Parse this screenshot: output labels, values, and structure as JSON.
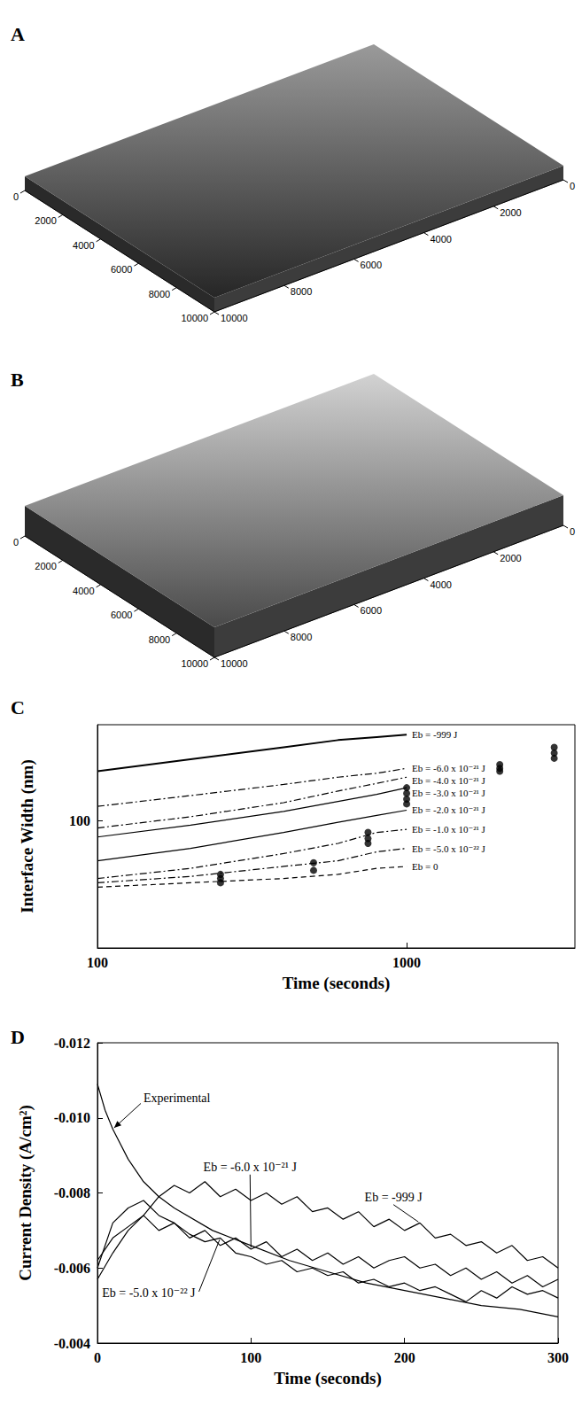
{
  "chart_data": [
    {
      "type": "surface3d",
      "title": "A",
      "xlim": [
        0,
        10000
      ],
      "ylim": [
        0,
        10000
      ],
      "xticks": [
        0,
        2000,
        4000,
        6000,
        8000,
        10000
      ],
      "yticks": [
        0,
        2000,
        4000,
        6000,
        8000,
        10000
      ]
    },
    {
      "type": "surface3d",
      "title": "B",
      "xlim": [
        0,
        10000
      ],
      "ylim": [
        0,
        10000
      ],
      "xticks": [
        0,
        2000,
        4000,
        6000,
        8000,
        10000
      ],
      "yticks": [
        0,
        2000,
        4000,
        6000,
        8000,
        10000
      ]
    },
    {
      "type": "line",
      "title": "C",
      "x_label": "Time (seconds)",
      "y_label": "Interface Width (nm)",
      "log": true,
      "grid": false,
      "xlim": [
        100,
        3500
      ],
      "ylim": [
        40,
        200
      ],
      "xticks": [
        100,
        1000
      ],
      "yticks": [
        100
      ],
      "series": [
        {
          "name": "Eb = -999 J",
          "color": "#000000",
          "line_style": "solid",
          "x": [
            100,
            200,
            400,
            600,
            800,
            1000
          ],
          "values": [
            143,
            156,
            170,
            179,
            183,
            186
          ]
        },
        {
          "name": "Eb = -6.0 x 10⁻²¹ J",
          "color": "#000000",
          "line_style": "dashdot",
          "x": [
            100,
            200,
            400,
            600,
            800,
            1000
          ],
          "values": [
            111,
            120,
            130,
            137,
            141,
            146
          ]
        },
        {
          "name": "Eb = -4.0 x 10⁻²¹ J",
          "color": "#000000",
          "line_style": "dashdot",
          "x": [
            100,
            200,
            400,
            600,
            800,
            1000
          ],
          "values": [
            95,
            103,
            114,
            124,
            131,
            137
          ]
        },
        {
          "name": "Eb = -3.0 x 10⁻²¹ J",
          "color": "#000000",
          "line_style": "solid",
          "x": [
            100,
            200,
            400,
            600,
            800,
            1000
          ],
          "values": [
            89,
            97,
            107,
            115,
            121,
            127
          ]
        },
        {
          "name": "Eb = -2.0 x 10⁻²¹ J",
          "color": "#000000",
          "line_style": "solid",
          "x": [
            100,
            200,
            400,
            600,
            800,
            1000
          ],
          "values": [
            75,
            82,
            92,
            99,
            104,
            108
          ]
        },
        {
          "name": "Eb = -1.0 x 10⁻²¹ J",
          "color": "#000000",
          "line_style": "dashdot",
          "x": [
            100,
            200,
            400,
            600,
            800,
            1000
          ],
          "values": [
            66,
            71,
            79,
            85,
            92,
            94
          ]
        },
        {
          "name": "Eb = -5.0 x 10⁻²² J",
          "color": "#000000",
          "line_style": "dashdot",
          "x": [
            100,
            200,
            400,
            600,
            800,
            1000
          ],
          "values": [
            64,
            67,
            72,
            75,
            80,
            82
          ]
        },
        {
          "name": "Eb = 0",
          "color": "#000000",
          "line_style": "dashed",
          "x": [
            100,
            200,
            400,
            600,
            800,
            1000
          ],
          "values": [
            62,
            64,
            66,
            68,
            71,
            72
          ]
        },
        {
          "type": "scatter",
          "marker": "circle",
          "color": "#000000",
          "x": [
            250,
            250,
            250,
            500,
            500,
            750,
            750,
            750,
            1000,
            1000,
            1000,
            1000,
            2000,
            2000,
            2000,
            3000,
            3000,
            3000
          ],
          "values": [
            68,
            66,
            64,
            74,
            70,
            92,
            88,
            85,
            127,
            122,
            117,
            113,
            150,
            146,
            143,
            170,
            163,
            157
          ]
        }
      ]
    },
    {
      "type": "line",
      "title": "D",
      "x_label": "Time (seconds)",
      "y_label": "Current Density (A/cm²)",
      "grid": false,
      "xlim": [
        0,
        300
      ],
      "ylim": [
        -0.004,
        -0.012
      ],
      "xticks": [
        0,
        100,
        200,
        300
      ],
      "yticks": [
        -0.012,
        {
          "value": -0.01,
          "label": "-0.010"
        },
        -0.008,
        -0.006,
        -0.004
      ],
      "series": [
        {
          "name": "Experimental",
          "color": "#000000",
          "line_style": "solid",
          "x": [
            0,
            5,
            10,
            20,
            30,
            40,
            50,
            75,
            100,
            125,
            150,
            175,
            200,
            225,
            250,
            275,
            300
          ],
          "values": [
            -0.0109,
            -0.0102,
            -0.0097,
            -0.0089,
            -0.0083,
            -0.0079,
            -0.0076,
            -0.007,
            -0.0066,
            -0.0062,
            -0.0059,
            -0.0056,
            -0.0054,
            -0.0052,
            -0.005,
            -0.0049,
            -0.0047
          ]
        },
        {
          "name": "Eb = -999 J",
          "color": "#000000",
          "line_style": "solid",
          "x": [
            0,
            10,
            20,
            30,
            40,
            50,
            60,
            70,
            80,
            90,
            100,
            110,
            120,
            130,
            140,
            150,
            160,
            170,
            180,
            190,
            200,
            210,
            220,
            230,
            240,
            250,
            260,
            270,
            280,
            290,
            300
          ],
          "values": [
            -0.0057,
            -0.0064,
            -0.007,
            -0.0074,
            -0.0079,
            -0.0082,
            -0.008,
            -0.0083,
            -0.0079,
            -0.0081,
            -0.0078,
            -0.008,
            -0.0077,
            -0.0079,
            -0.0075,
            -0.0076,
            -0.0073,
            -0.0075,
            -0.0071,
            -0.0073,
            -0.007,
            -0.0072,
            -0.0068,
            -0.0069,
            -0.0066,
            -0.0067,
            -0.0064,
            -0.0066,
            -0.0062,
            -0.0063,
            -0.006
          ]
        },
        {
          "name": "Eb = -6.0 x 10⁻²¹ J",
          "color": "#000000",
          "line_style": "solid",
          "x": [
            0,
            10,
            20,
            30,
            40,
            50,
            60,
            70,
            80,
            90,
            100,
            110,
            120,
            130,
            140,
            150,
            160,
            170,
            180,
            190,
            200,
            210,
            220,
            230,
            240,
            250,
            260,
            270,
            280,
            290,
            300
          ],
          "values": [
            -0.0062,
            -0.0068,
            -0.0071,
            -0.0074,
            -0.007,
            -0.0072,
            -0.0068,
            -0.007,
            -0.0066,
            -0.0068,
            -0.0065,
            -0.0067,
            -0.0063,
            -0.0065,
            -0.0062,
            -0.0064,
            -0.0061,
            -0.0063,
            -0.006,
            -0.0062,
            -0.0063,
            -0.006,
            -0.0061,
            -0.0058,
            -0.006,
            -0.0057,
            -0.0059,
            -0.0056,
            -0.0058,
            -0.0055,
            -0.0057
          ]
        },
        {
          "name": "Eb = -5.0 x 10⁻²² J",
          "color": "#000000",
          "line_style": "solid",
          "x": [
            0,
            10,
            20,
            30,
            40,
            50,
            60,
            70,
            80,
            90,
            100,
            110,
            120,
            130,
            140,
            150,
            160,
            170,
            180,
            190,
            200,
            210,
            220,
            230,
            240,
            250,
            260,
            270,
            280,
            290,
            300
          ],
          "values": [
            -0.006,
            -0.0072,
            -0.0076,
            -0.0078,
            -0.0074,
            -0.0072,
            -0.0069,
            -0.0067,
            -0.0068,
            -0.0064,
            -0.0063,
            -0.0061,
            -0.0062,
            -0.0059,
            -0.006,
            -0.0058,
            -0.0059,
            -0.0056,
            -0.0057,
            -0.0055,
            -0.0056,
            -0.0054,
            -0.0055,
            -0.0053,
            -0.0051,
            -0.0054,
            -0.0052,
            -0.0055,
            -0.0053,
            -0.0054,
            -0.0052
          ]
        }
      ]
    }
  ]
}
